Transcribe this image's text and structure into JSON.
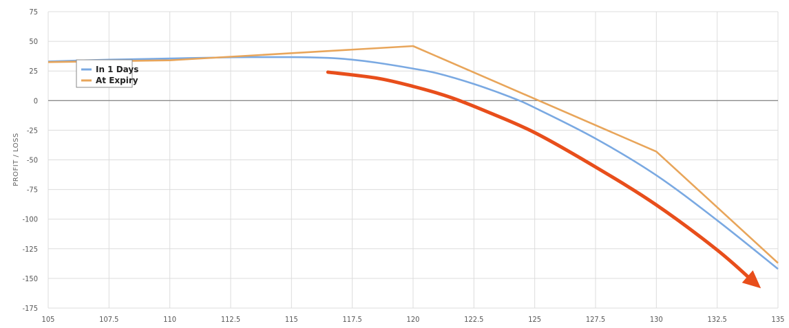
{
  "chart_data": {
    "type": "line",
    "ylabel": "PROFIT / LOSS",
    "xlabel": "",
    "title": "",
    "xlim": [
      105,
      135
    ],
    "ylim": [
      -175,
      75
    ],
    "x_ticks": [
      "105",
      "107.5",
      "110",
      "112.5",
      "115",
      "117.5",
      "120",
      "122.5",
      "125",
      "127.5",
      "130",
      "132.5",
      "135"
    ],
    "y_ticks": [
      "75",
      "50",
      "25",
      "0",
      "-25",
      "-50",
      "-75",
      "-100",
      "-125",
      "-150",
      "-175"
    ],
    "x_tick_values": [
      105,
      107.5,
      110,
      112.5,
      115,
      117.5,
      120,
      122.5,
      125,
      127.5,
      130,
      132.5,
      135
    ],
    "y_tick_values": [
      75,
      50,
      25,
      0,
      -25,
      -50,
      -75,
      -100,
      -125,
      -150,
      -175
    ],
    "grid": true,
    "legend": "top-left",
    "series": [
      {
        "name": "In 1 Days",
        "color": "#7AA9E2",
        "x": [
          105,
          107.5,
          110,
          112.5,
          115,
          116.5,
          117.5,
          118.5,
          120,
          121,
          122.5,
          124,
          125,
          127.5,
          130,
          132.5,
          135
        ],
        "y": [
          33,
          34.5,
          35.5,
          36.5,
          36.7,
          36,
          34.5,
          32,
          27,
          23,
          14,
          3,
          -6,
          -32,
          -63,
          -101,
          -142
        ]
      },
      {
        "name": "At Expiry",
        "color": "#E8A55A",
        "x": [
          105,
          110,
          112.5,
          120,
          130,
          135
        ],
        "y": [
          32.5,
          34,
          37,
          46,
          -43,
          -137
        ]
      }
    ],
    "annotation": {
      "type": "arrow",
      "color": "#E84E1B",
      "x": [
        116.5,
        118.5,
        120,
        121.5,
        123,
        125,
        127.5,
        130,
        132.5,
        134
      ],
      "y": [
        24,
        19,
        12,
        3,
        -9,
        -27,
        -56,
        -88,
        -126,
        -153
      ]
    }
  }
}
